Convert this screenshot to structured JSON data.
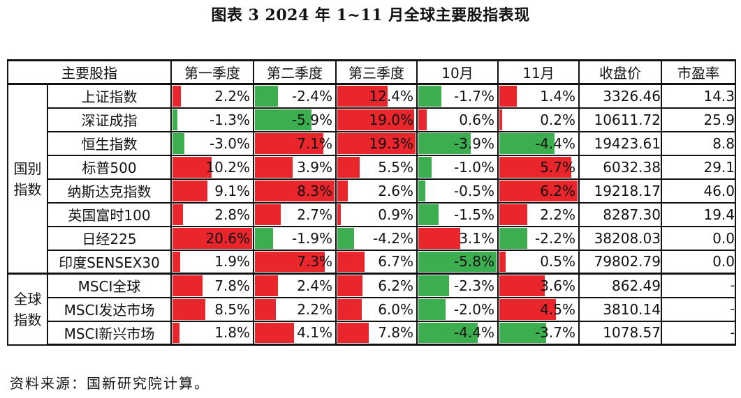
{
  "title": "图表 3  2024 年 1~11 月全球主要股指表现",
  "headers": [
    "主要股指",
    "第一季度",
    "第二季度",
    "第三季度",
    "10月",
    "11月",
    "收盘价",
    "市盈率"
  ],
  "groups": [
    {
      "label_line1": "国别",
      "label_line2": "指数"
    },
    {
      "label_line1": "全球",
      "label_line2": "指数"
    }
  ],
  "rows": [
    {
      "name": "上证指数",
      "q1": "2.2%",
      "q2": "-2.4%",
      "q3": "12.4%",
      "oct": "-1.7%",
      "nov": "1.4%",
      "close": "3326.46",
      "pe": "14.3"
    },
    {
      "name": "深证成指",
      "q1": "-1.3%",
      "q2": "-5.9%",
      "q3": "19.0%",
      "oct": "0.6%",
      "nov": "0.2%",
      "close": "10611.72",
      "pe": "25.9"
    },
    {
      "name": "恒生指数",
      "q1": "-3.0%",
      "q2": "7.1%",
      "q3": "19.3%",
      "oct": "-3.9%",
      "nov": "-4.4%",
      "close": "19423.61",
      "pe": "8.8"
    },
    {
      "name": "标普500",
      "q1": "10.2%",
      "q2": "3.9%",
      "q3": "5.5%",
      "oct": "-1.0%",
      "nov": "5.7%",
      "close": "6032.38",
      "pe": "29.1"
    },
    {
      "name": "纳斯达克指数",
      "q1": "9.1%",
      "q2": "8.3%",
      "q3": "2.6%",
      "oct": "-0.5%",
      "nov": "6.2%",
      "close": "19218.17",
      "pe": "46.0"
    },
    {
      "name": "英国富时100",
      "q1": "2.8%",
      "q2": "2.7%",
      "q3": "0.9%",
      "oct": "-1.5%",
      "nov": "2.2%",
      "close": "8287.30",
      "pe": "19.4"
    },
    {
      "name": "日经225",
      "q1": "20.6%",
      "q2": "-1.9%",
      "q3": "-4.2%",
      "oct": "3.1%",
      "nov": "-2.2%",
      "close": "38208.03",
      "pe": "0.0"
    },
    {
      "name": "印度SENSEX30",
      "q1": "1.9%",
      "q2": "7.3%",
      "q3": "6.7%",
      "oct": "-5.8%",
      "nov": "0.5%",
      "close": "79802.79",
      "pe": "0.0"
    },
    {
      "name": "MSCI全球",
      "q1": "7.8%",
      "q2": "2.4%",
      "q3": "6.2%",
      "oct": "-2.3%",
      "nov": "3.6%",
      "close": "862.49",
      "pe": "-"
    },
    {
      "name": "MSCI发达市场",
      "q1": "8.5%",
      "q2": "2.2%",
      "q3": "6.0%",
      "oct": "-2.0%",
      "nov": "4.5%",
      "close": "3810.14",
      "pe": "-"
    },
    {
      "name": "MSCI新兴市场",
      "q1": "1.8%",
      "q2": "4.1%",
      "q3": "7.8%",
      "oct": "-4.4%",
      "nov": "-3.7%",
      "close": "1078.57",
      "pe": "-"
    }
  ],
  "colors": {
    "positive": "#e8262b",
    "negative": "#3cae4f"
  },
  "source": "资料来源：国新研究院计算。"
}
